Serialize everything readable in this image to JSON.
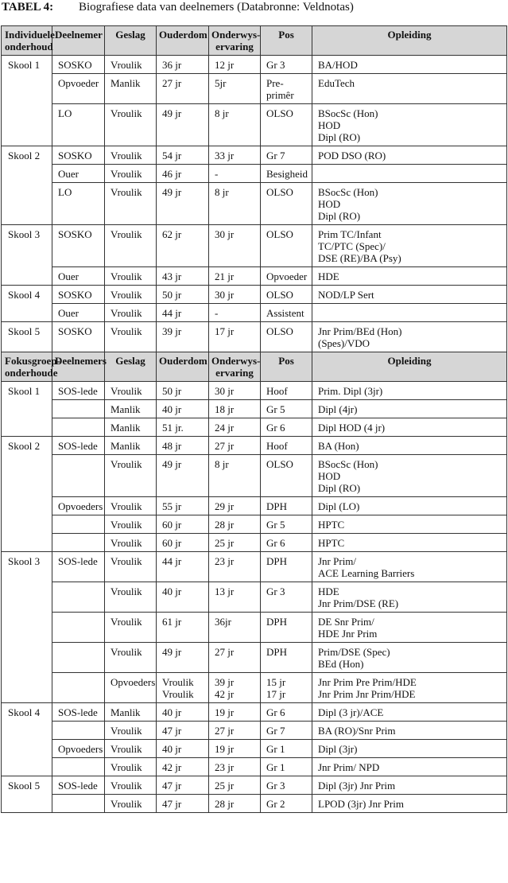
{
  "title": {
    "label": "TABEL 4:",
    "text": "Biografiese data van deelnemers (Databronne: Veldnotas)"
  },
  "sections": [
    {
      "headers": [
        "Individuele\nonderhoud",
        "Deelnemer",
        "Geslag",
        "Ouderdom",
        "Onderwys-\nervaring",
        "Pos",
        "Opleiding"
      ],
      "groups": [
        {
          "school": "Skool 1",
          "rows": [
            [
              "SOSKO",
              "Vroulik",
              "36 jr",
              "12 jr",
              "Gr 3",
              "BA/HOD"
            ],
            [
              "Opvoeder",
              "Manlik",
              "27 jr",
              "5jr",
              "Pre-primêr",
              "EduTech"
            ],
            [
              "LO",
              "Vroulik",
              "49 jr",
              "8 jr",
              "OLSO",
              "BSocSc (Hon)\nHOD\nDipl (RO)"
            ]
          ]
        },
        {
          "school": "Skool 2",
          "rows": [
            [
              "SOSKO",
              "Vroulik",
              "54 jr",
              "33 jr",
              "Gr 7",
              "POD DSO (RO)"
            ],
            [
              "Ouer",
              "Vroulik",
              "46 jr",
              "-",
              "Besigheid",
              ""
            ],
            [
              "LO",
              "Vroulik",
              "49 jr",
              "8 jr",
              "OLSO",
              "BSocSc (Hon)\nHOD\nDipl (RO)"
            ]
          ]
        },
        {
          "school": "Skool 3",
          "rows": [
            [
              "SOSKO",
              "Vroulik",
              "62 jr",
              "30 jr",
              "OLSO",
              "Prim TC/Infant\nTC/PTC (Spec)/\nDSE (RE)/BA (Psy)"
            ],
            [
              "Ouer",
              "Vroulik",
              "43 jr",
              "21 jr",
              "Opvoeder",
              "HDE"
            ]
          ]
        },
        {
          "school": "Skool 4",
          "rows": [
            [
              "SOSKO",
              "Vroulik",
              "50 jr",
              "30 jr",
              "OLSO",
              "NOD/LP Sert"
            ],
            [
              "Ouer",
              "Vroulik",
              "44 jr",
              "-",
              "Assistent",
              ""
            ]
          ]
        },
        {
          "school": "Skool 5",
          "rows": [
            [
              "SOSKO",
              "Vroulik",
              "39 jr",
              "17 jr",
              "OLSO",
              "Jnr Prim/BEd (Hon)\n(Spes)/VDO"
            ]
          ]
        }
      ]
    },
    {
      "headers": [
        "Fokusgroep-\nonderhoude",
        "Deelnemers",
        "Geslag",
        "Ouderdom",
        "Onderwys-\nervaring",
        "Pos",
        "Opleiding"
      ],
      "groups": [
        {
          "school": "Skool 1",
          "rows": [
            [
              "SOS-lede",
              "Vroulik",
              "50 jr",
              "30 jr",
              "Hoof",
              "Prim. Dipl (3jr)"
            ],
            [
              "",
              "Manlik",
              "40 jr",
              "18 jr",
              "Gr 5",
              "Dipl (4jr)"
            ],
            [
              "",
              "Manlik",
              "51 jr.",
              "24 jr",
              "Gr 6",
              "Dipl HOD (4 jr)"
            ]
          ]
        },
        {
          "school": "Skool 2",
          "rows": [
            [
              "SOS-lede",
              "Manlik",
              "48 jr",
              "27 jr",
              "Hoof",
              "BA (Hon)"
            ],
            [
              "",
              "Vroulik",
              "49 jr",
              "8 jr",
              "OLSO",
              "BSocSc (Hon)\nHOD\nDipl (RO)"
            ],
            [
              "Opvoeders",
              "Vroulik",
              "55 jr",
              "29 jr",
              "DPH",
              "Dipl (LO)"
            ],
            [
              "",
              "Vroulik",
              "60 jr",
              "28 jr",
              "Gr 5",
              "HPTC"
            ],
            [
              "",
              "Vroulik",
              "60 jr",
              "25 jr",
              "Gr 6",
              "HPTC"
            ]
          ]
        },
        {
          "school": "Skool 3",
          "rows": [
            [
              "SOS-lede",
              "Vroulik",
              "44 jr",
              "23 jr",
              "DPH",
              "Jnr Prim/\nACE Learning Barriers"
            ],
            [
              "",
              "Vroulik",
              "40 jr",
              "13 jr",
              "Gr 3",
              "HDE\nJnr Prim/DSE (RE)"
            ],
            [
              "",
              "Vroulik",
              "61 jr",
              "36jr",
              "DPH",
              "DE Snr Prim/\nHDE Jnr Prim"
            ],
            [
              "",
              "Vroulik",
              "49 jr",
              "27 jr",
              "DPH",
              "Prim/DSE (Spec)\nBEd (Hon)"
            ],
            [
              "",
              "Opvoeders",
              "Vroulik\nVroulik",
              "39 jr\n42 jr",
              "15 jr\n17 jr",
              "Jnr Prim  Pre Prim/HDE\nJnr Prim  Jnr Prim/HDE"
            ]
          ]
        },
        {
          "school": "Skool 4",
          "rows": [
            [
              "SOS-lede",
              "Manlik",
              "40 jr",
              "19 jr",
              "Gr 6",
              "Dipl (3 jr)/ACE"
            ],
            [
              "",
              "Vroulik",
              "47 jr",
              "27 jr",
              "Gr 7",
              "BA (RO)/Snr Prim"
            ],
            [
              "Opvoeders",
              "Vroulik",
              "40 jr",
              "19 jr",
              "Gr 1",
              "Dipl (3jr)"
            ],
            [
              "",
              "Vroulik",
              "42 jr",
              "23 jr",
              "Gr 1",
              "Jnr Prim/ NPD"
            ]
          ]
        },
        {
          "school": "Skool 5",
          "rows": [
            [
              "SOS-lede",
              "Vroulik",
              "47 jr",
              "25 jr",
              "Gr 3",
              "Dipl (3jr) Jnr Prim"
            ],
            [
              "",
              "Vroulik",
              "47 jr",
              "28 jr",
              "Gr 2",
              "LPOD (3jr) Jnr Prim"
            ]
          ]
        }
      ]
    }
  ]
}
